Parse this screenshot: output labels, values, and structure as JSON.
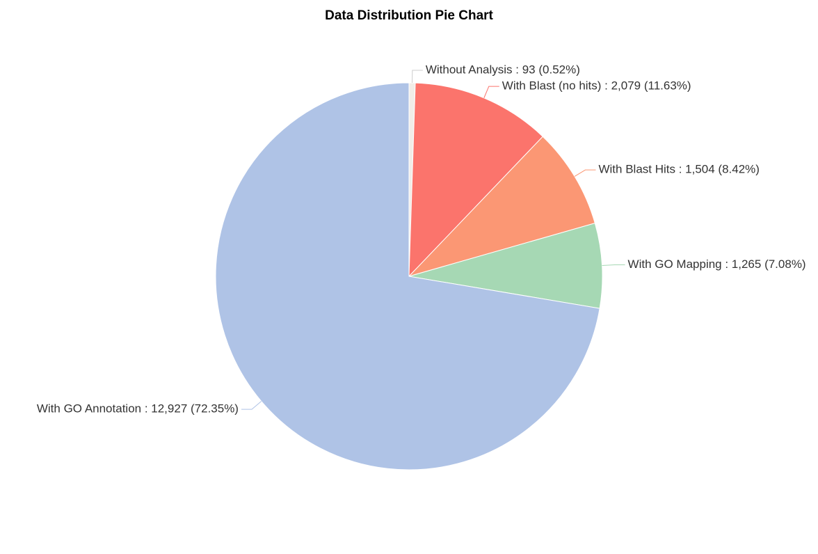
{
  "chart_data": {
    "type": "pie",
    "title": "Data Distribution Pie Chart",
    "labels": [
      "Without Analysis : 93 (0.52%)",
      "With Blast (no hits) : 2,079 (11.63%)",
      "With Blast Hits : 1,504 (8.42%)",
      "With GO Mapping : 1,265 (7.08%)",
      "With GO Annotation : 12,927 (72.35%)"
    ],
    "values": [
      93,
      2079,
      1504,
      1265,
      12927
    ],
    "colors": [
      "#f1ede8",
      "#fb746c",
      "#fb9774",
      "#a6d8b4",
      "#afc3e6"
    ]
  }
}
